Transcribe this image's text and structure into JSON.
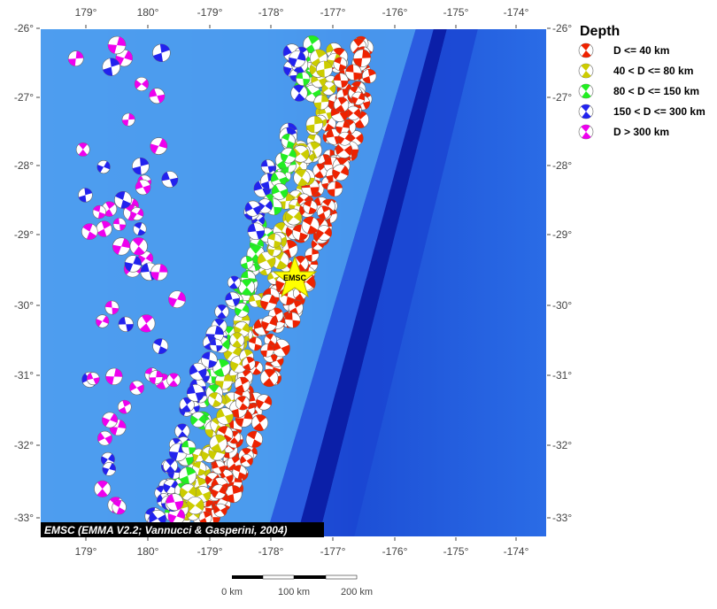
{
  "lon_labels": [
    "179°",
    "180°",
    "-179°",
    "-178°",
    "-177°",
    "-176°",
    "-175°",
    "-174°"
  ],
  "lat_labels": [
    "-26°",
    "-27°",
    "-28°",
    "-29°",
    "-30°",
    "-31°",
    "-32°",
    "-33°"
  ],
  "legend": {
    "title": "Depth",
    "entries": [
      "D <= 40 km",
      "40 < D <= 80 km",
      "80 < D <= 150 km",
      "150 < D <= 300 km",
      "D > 300 km"
    ]
  },
  "caption": "EMSC (EMMA V2.2; Vannucci & Gasperini, 2004)",
  "marker_label": "EMSC",
  "scale_labels": [
    "0 km",
    "100 km",
    "200 km"
  ]
}
